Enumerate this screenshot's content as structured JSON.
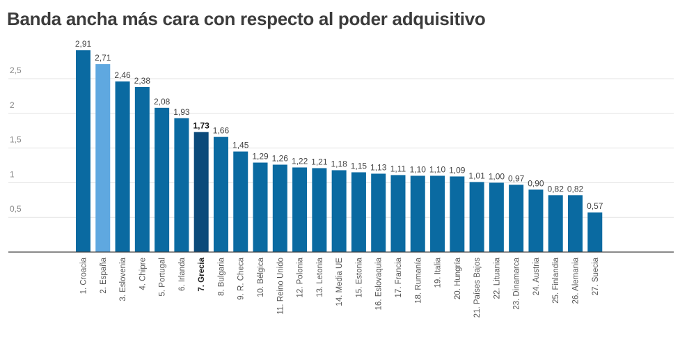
{
  "title": "Banda ancha más cara con respecto al poder adquisitivo",
  "chart_data": {
    "type": "bar",
    "title": "Banda ancha más cara con respecto al poder adquisitivo",
    "xlabel": "",
    "ylabel": "",
    "ylim": [
      0,
      3
    ],
    "yticks": [
      "0,5",
      "1",
      "1,5",
      "2",
      "2,5"
    ],
    "ytick_values": [
      0.5,
      1,
      1.5,
      2,
      2.5
    ],
    "grid": true,
    "categories": [
      "1. Croacia",
      "2. España",
      "3. Eslovenia",
      "4. Chipre",
      "5. Portugal",
      "6. Irlanda",
      "7. Grecia",
      "8. Bulgaria",
      "9. R. Checa",
      "10. Bélgica",
      "11. Reino Unido",
      "12. Polonia",
      "13. Letonia",
      "14. Media UE",
      "15. Estonia",
      "16. Eslovaquia",
      "17. Francia",
      "18. Rumanía",
      "19. Italia",
      "20. Hungría",
      "21. Países Bajos",
      "22. Lituania",
      "23. Dinamarca",
      "24. Austria",
      "25. Finlandia",
      "26. Alemania",
      "27. Suecia"
    ],
    "values": [
      2.91,
      2.71,
      2.46,
      2.38,
      2.08,
      1.93,
      1.73,
      1.66,
      1.45,
      1.29,
      1.26,
      1.22,
      1.21,
      1.18,
      1.15,
      1.13,
      1.11,
      1.1,
      1.1,
      1.09,
      1.01,
      1.0,
      0.97,
      0.9,
      0.82,
      0.82,
      0.57
    ],
    "value_labels": [
      "2,91",
      "2,71",
      "2,46",
      "2,38",
      "2,08",
      "1,93",
      "1,73",
      "1,66",
      "1,45",
      "1,29",
      "1,26",
      "1,22",
      "1,21",
      "1,18",
      "1,15",
      "1,13",
      "1,11",
      "1,10",
      "1,10",
      "1,09",
      "1,01",
      "1,00",
      "0,97",
      "0,90",
      "0,82",
      "0,82",
      "0,57"
    ],
    "highlight": {
      "2. España": "light",
      "7. Grecia": "dark"
    },
    "colors": {
      "default": "#0a6aa1",
      "light": "#5fa8e0",
      "dark": "#0b4a7a",
      "grid": "#e3e3e3",
      "axis": "#444444"
    }
  }
}
